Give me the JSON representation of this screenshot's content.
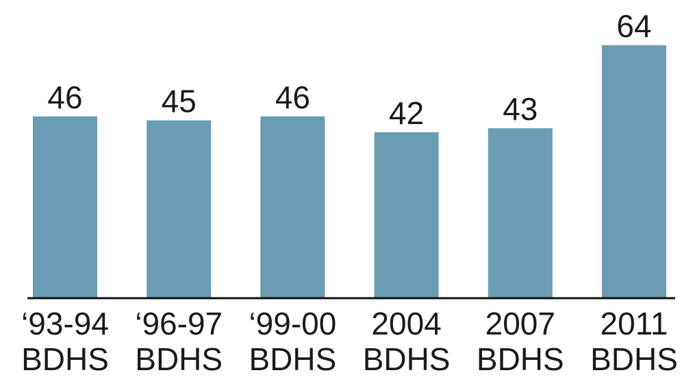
{
  "chart_data": {
    "type": "bar",
    "categories": [
      "‘93-94\nBDHS",
      "‘96-97\nBDHS",
      "‘99-00\nBDHS",
      "2004\nBDHS",
      "2007\nBDHS",
      "2011\nBDHS"
    ],
    "values": [
      46,
      45,
      46,
      42,
      43,
      64
    ],
    "color": "#6a9cb4"
  }
}
